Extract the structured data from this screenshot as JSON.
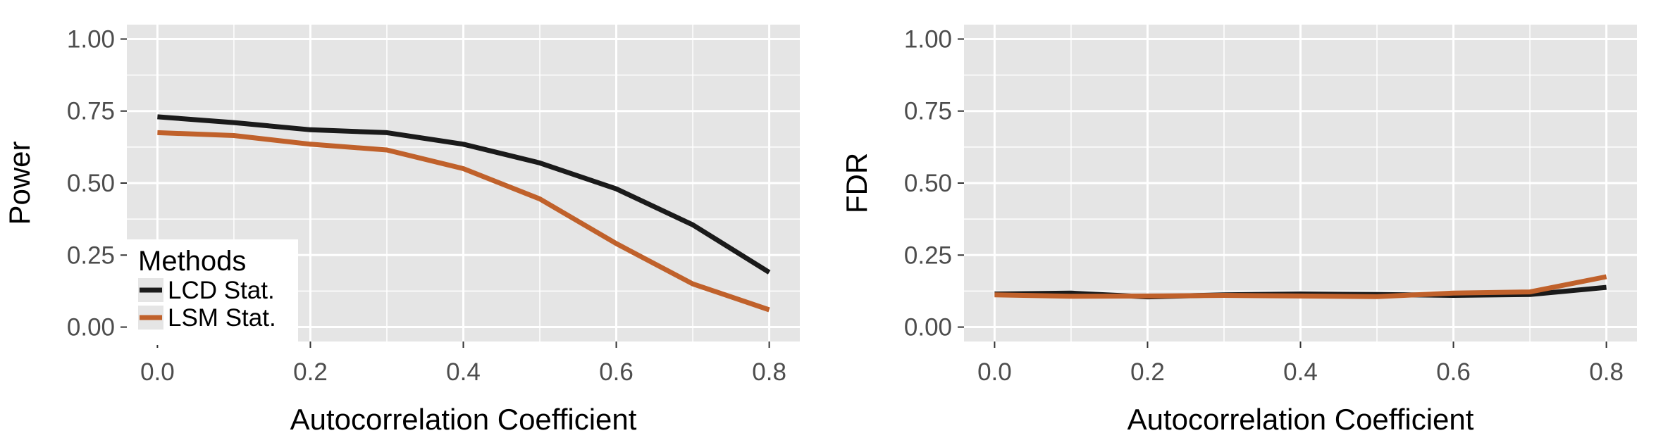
{
  "chart_data": [
    {
      "type": "line",
      "title": "",
      "xlabel": "Autocorrelation Coefficient",
      "ylabel": "Power",
      "x": [
        0.0,
        0.1,
        0.2,
        0.3,
        0.4,
        0.5,
        0.6,
        0.7,
        0.8
      ],
      "xlim": [
        -0.04,
        0.84
      ],
      "ylim": [
        -0.05,
        1.05
      ],
      "x_ticks": [
        0.0,
        0.2,
        0.4,
        0.6,
        0.8
      ],
      "x_tick_labels": [
        "0.0",
        "0.2",
        "0.4",
        "0.6",
        "0.8"
      ],
      "y_ticks": [
        0.0,
        0.25,
        0.5,
        0.75,
        1.0
      ],
      "y_tick_labels": [
        "0.00",
        "0.25",
        "0.50",
        "0.75",
        "1.00"
      ],
      "grid": true,
      "legend": {
        "title": "Methods",
        "placement": "bottom-left"
      },
      "series": [
        {
          "name": "LCD Stat.",
          "color": "#1a1a1a",
          "values": [
            0.73,
            0.71,
            0.685,
            0.675,
            0.635,
            0.57,
            0.48,
            0.355,
            0.19
          ]
        },
        {
          "name": "LSM Stat.",
          "color": "#c0612b",
          "values": [
            0.675,
            0.665,
            0.635,
            0.615,
            0.55,
            0.445,
            0.29,
            0.15,
            0.06
          ]
        }
      ]
    },
    {
      "type": "line",
      "title": "",
      "xlabel": "Autocorrelation Coefficient",
      "ylabel": "FDR",
      "x": [
        0.0,
        0.1,
        0.2,
        0.3,
        0.4,
        0.5,
        0.6,
        0.7,
        0.8
      ],
      "xlim": [
        -0.04,
        0.84
      ],
      "ylim": [
        -0.05,
        1.05
      ],
      "x_ticks": [
        0.0,
        0.2,
        0.4,
        0.6,
        0.8
      ],
      "x_tick_labels": [
        "0.0",
        "0.2",
        "0.4",
        "0.6",
        "0.8"
      ],
      "y_ticks": [
        0.0,
        0.25,
        0.5,
        0.75,
        1.0
      ],
      "y_tick_labels": [
        "0.00",
        "0.25",
        "0.50",
        "0.75",
        "1.00"
      ],
      "grid": true,
      "legend": null,
      "series": [
        {
          "name": "LCD Stat.",
          "color": "#1a1a1a",
          "values": [
            0.115,
            0.118,
            0.105,
            0.112,
            0.115,
            0.113,
            0.11,
            0.113,
            0.138
          ]
        },
        {
          "name": "LSM Stat.",
          "color": "#c0612b",
          "values": [
            0.112,
            0.107,
            0.108,
            0.11,
            0.108,
            0.106,
            0.118,
            0.122,
            0.175
          ]
        }
      ]
    }
  ],
  "colors": {
    "panel_background": "#e5e5e5",
    "grid": "#ffffff",
    "tick_label": "#4d4d4d"
  }
}
